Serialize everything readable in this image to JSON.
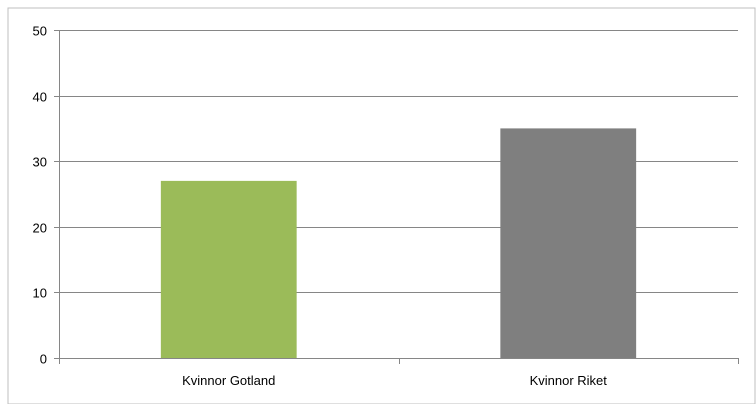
{
  "chart_data": {
    "type": "bar",
    "title": "",
    "xlabel": "",
    "ylabel": "",
    "categories": [
      "Kvinnor Gotland",
      "Kvinnor Riket"
    ],
    "values": [
      27,
      35
    ],
    "bar_colors": [
      "#9BBB59",
      "#7F7F7F"
    ],
    "ylim": [
      0,
      50
    ],
    "yticks": [
      0,
      10,
      20,
      30,
      40,
      50
    ],
    "grid": true,
    "legend": "none"
  }
}
